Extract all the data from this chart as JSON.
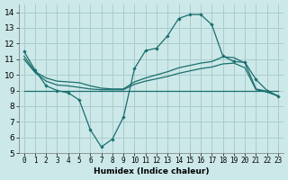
{
  "xlabel": "Humidex (Indice chaleur)",
  "bg_color": "#cce8e8",
  "grid_color": "#aacccc",
  "line_color": "#1a6e6e",
  "xlim": [
    -0.5,
    23.5
  ],
  "ylim": [
    5,
    14.5
  ],
  "xtick_vals": [
    0,
    1,
    2,
    3,
    4,
    5,
    6,
    7,
    8,
    9,
    10,
    11,
    12,
    13,
    14,
    15,
    16,
    17,
    18,
    19,
    20,
    21,
    22,
    23
  ],
  "ytick_vals": [
    5,
    6,
    7,
    8,
    9,
    10,
    11,
    12,
    13,
    14
  ],
  "line1_x": [
    0,
    1,
    2,
    3,
    4,
    5,
    6,
    7,
    8,
    9,
    10,
    11,
    12,
    13,
    14,
    15,
    16,
    17,
    18,
    19,
    20,
    21,
    22,
    23
  ],
  "line1_y": [
    11.5,
    10.3,
    9.3,
    9.0,
    8.85,
    8.4,
    6.5,
    5.4,
    5.9,
    7.3,
    10.4,
    11.55,
    11.7,
    12.5,
    13.6,
    13.85,
    13.85,
    13.2,
    11.2,
    10.85,
    10.8,
    9.7,
    9.0,
    8.65
  ],
  "line2_x": [
    0,
    1,
    2,
    3,
    4,
    5,
    6,
    7,
    8,
    9,
    10,
    11,
    12,
    13,
    14,
    15,
    16,
    17,
    18,
    19,
    20,
    21,
    22,
    23
  ],
  "line2_y": [
    11.2,
    10.2,
    9.8,
    9.6,
    9.55,
    9.5,
    9.3,
    9.15,
    9.1,
    9.1,
    9.55,
    9.8,
    10.0,
    10.2,
    10.45,
    10.6,
    10.75,
    10.85,
    11.15,
    11.1,
    10.75,
    9.1,
    8.95,
    8.65
  ],
  "line3_x": [
    0,
    1,
    2,
    3,
    4,
    5,
    6,
    7,
    8,
    9,
    10,
    11,
    12,
    13,
    14,
    15,
    16,
    17,
    18,
    19,
    20,
    21,
    22,
    23
  ],
  "line3_y": [
    11.0,
    10.15,
    9.6,
    9.35,
    9.3,
    9.2,
    9.1,
    9.05,
    9.05,
    9.05,
    9.4,
    9.6,
    9.75,
    9.9,
    10.1,
    10.25,
    10.4,
    10.5,
    10.7,
    10.75,
    10.45,
    9.05,
    8.9,
    8.65
  ],
  "line4_x": [
    0,
    23
  ],
  "line4_y": [
    9.0,
    9.0
  ],
  "xlabel_fontsize": 6.5,
  "tick_fontsize_x": 5.5,
  "tick_fontsize_y": 6.5
}
